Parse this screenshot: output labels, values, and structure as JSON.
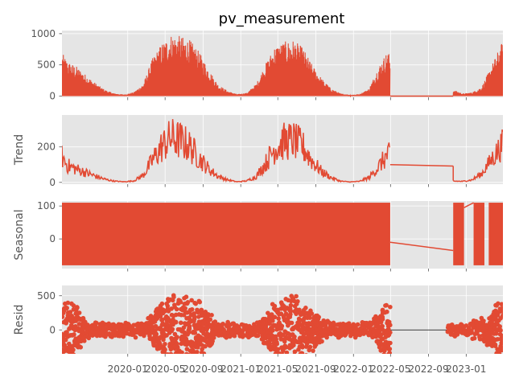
{
  "chart_data": {
    "type": "line",
    "title": "pv_measurement",
    "colors": {
      "series": "#E24A33",
      "panel_background": "#E5E5E5",
      "grid": "#FFFFFF",
      "tick_text": "#555555",
      "resid_baseline": "#000000"
    },
    "x_axis": {
      "ticks": [
        "2020-01",
        "2020-05",
        "2020-09",
        "2021-01",
        "2021-05",
        "2021-09",
        "2022-01",
        "2022-05",
        "2022-09",
        "2023-01"
      ],
      "range": [
        "2019-06-02",
        "2023-04-30"
      ],
      "shared": true
    },
    "x_events": {
      "winter_1": "2020-02-15",
      "summer_1_start": "2020-03-25",
      "summer_1_end": "2020-10-05",
      "winter_2": "2021-01-15",
      "summer_2_start": "2021-03-20",
      "summer_2_end": "2021-10-10",
      "burst_3_start": "2022-03-20",
      "data_gap_start": "2022-04-30",
      "data_gap_end": "2022-11-20",
      "seasonal_burst_a_end": "2022-12-25",
      "seasonal_burst_b": [
        "2023-01-25",
        "2023-03-01"
      ],
      "seasonal_burst_c_start": "2023-03-15"
    },
    "panels": [
      {
        "id": "observed",
        "ylabel": "",
        "ylim": [
          -20,
          1050
        ],
        "yticks": [
          0,
          500,
          1000
        ],
        "series_name": "pv_measurement",
        "envelope": [
          {
            "x": "2019-06-02",
            "y": 690
          },
          {
            "x": "2019-06-20",
            "y": 560
          },
          {
            "x": "2019-07-20",
            "y": 470
          },
          {
            "x": "2019-08-20",
            "y": 330
          },
          {
            "x": "2019-09-20",
            "y": 200
          },
          {
            "x": "2019-10-20",
            "y": 95
          },
          {
            "x": "2019-11-20",
            "y": 40
          },
          {
            "x": "2019-12-20",
            "y": 25
          },
          {
            "x": "2020-01-20",
            "y": 60
          },
          {
            "x": "2020-02-20",
            "y": 200
          },
          {
            "x": "2020-03-20",
            "y": 600
          },
          {
            "x": "2020-04-20",
            "y": 850
          },
          {
            "x": "2020-05-20",
            "y": 990
          },
          {
            "x": "2020-06-20",
            "y": 960
          },
          {
            "x": "2020-07-20",
            "y": 900
          },
          {
            "x": "2020-08-20",
            "y": 700
          },
          {
            "x": "2020-09-20",
            "y": 420
          },
          {
            "x": "2020-10-20",
            "y": 180
          },
          {
            "x": "2020-11-20",
            "y": 80
          },
          {
            "x": "2020-12-20",
            "y": 30
          },
          {
            "x": "2021-01-20",
            "y": 50
          },
          {
            "x": "2021-02-20",
            "y": 200
          },
          {
            "x": "2021-03-20",
            "y": 500
          },
          {
            "x": "2021-04-20",
            "y": 800
          },
          {
            "x": "2021-05-20",
            "y": 870
          },
          {
            "x": "2021-06-20",
            "y": 900
          },
          {
            "x": "2021-07-20",
            "y": 780
          },
          {
            "x": "2021-08-20",
            "y": 500
          },
          {
            "x": "2021-09-20",
            "y": 280
          },
          {
            "x": "2021-10-20",
            "y": 120
          },
          {
            "x": "2021-11-20",
            "y": 40
          },
          {
            "x": "2021-12-20",
            "y": 20
          },
          {
            "x": "2022-01-20",
            "y": 30
          },
          {
            "x": "2022-02-20",
            "y": 120
          },
          {
            "x": "2022-03-20",
            "y": 450
          },
          {
            "x": "2022-04-20",
            "y": 720
          },
          {
            "x": "2022-04-30",
            "y": 650
          },
          {
            "x": "2022-11-20",
            "y": 100
          },
          {
            "x": "2022-12-20",
            "y": 40
          },
          {
            "x": "2023-01-20",
            "y": 60
          },
          {
            "x": "2023-02-20",
            "y": 150
          },
          {
            "x": "2023-03-20",
            "y": 450
          },
          {
            "x": "2023-04-30",
            "y": 900
          }
        ],
        "flat_segments": [
          {
            "from": "2022-04-30",
            "to": "2022-11-20",
            "y": 0
          }
        ]
      },
      {
        "id": "trend",
        "ylabel": "Trend",
        "ylim": [
          -10,
          380
        ],
        "yticks": [
          0,
          200
        ],
        "envelope": [
          {
            "x": "2019-06-02",
            "y": 215
          },
          {
            "x": "2019-06-20",
            "y": 140
          },
          {
            "x": "2019-07-20",
            "y": 110
          },
          {
            "x": "2019-08-20",
            "y": 80
          },
          {
            "x": "2019-09-20",
            "y": 50
          },
          {
            "x": "2019-10-20",
            "y": 25
          },
          {
            "x": "2019-11-20",
            "y": 10
          },
          {
            "x": "2019-12-20",
            "y": 5
          },
          {
            "x": "2020-01-20",
            "y": 12
          },
          {
            "x": "2020-02-20",
            "y": 60
          },
          {
            "x": "2020-03-20",
            "y": 180
          },
          {
            "x": "2020-04-20",
            "y": 300
          },
          {
            "x": "2020-05-20",
            "y": 370
          },
          {
            "x": "2020-06-20",
            "y": 350
          },
          {
            "x": "2020-07-20",
            "y": 300
          },
          {
            "x": "2020-08-20",
            "y": 200
          },
          {
            "x": "2020-09-20",
            "y": 110
          },
          {
            "x": "2020-10-20",
            "y": 50
          },
          {
            "x": "2020-11-20",
            "y": 20
          },
          {
            "x": "2020-12-20",
            "y": 5
          },
          {
            "x": "2021-01-20",
            "y": 12
          },
          {
            "x": "2021-02-20",
            "y": 50
          },
          {
            "x": "2021-03-20",
            "y": 150
          },
          {
            "x": "2021-04-20",
            "y": 280
          },
          {
            "x": "2021-05-20",
            "y": 340
          },
          {
            "x": "2021-06-20",
            "y": 350
          },
          {
            "x": "2021-07-20",
            "y": 300
          },
          {
            "x": "2021-08-20",
            "y": 180
          },
          {
            "x": "2021-09-20",
            "y": 90
          },
          {
            "x": "2021-10-20",
            "y": 40
          },
          {
            "x": "2021-11-20",
            "y": 10
          },
          {
            "x": "2021-12-20",
            "y": 4
          },
          {
            "x": "2022-01-20",
            "y": 8
          },
          {
            "x": "2022-02-20",
            "y": 40
          },
          {
            "x": "2022-03-20",
            "y": 120
          },
          {
            "x": "2022-04-20",
            "y": 225
          },
          {
            "x": "2022-04-30",
            "y": 225
          }
        ],
        "tail_envelope": [
          {
            "x": "2022-11-20",
            "y": 10
          },
          {
            "x": "2022-12-20",
            "y": 8
          },
          {
            "x": "2023-01-20",
            "y": 20
          },
          {
            "x": "2023-02-20",
            "y": 70
          },
          {
            "x": "2023-03-20",
            "y": 170
          },
          {
            "x": "2023-04-30",
            "y": 310
          }
        ],
        "flat_segments": [
          {
            "from": "2022-04-30",
            "to": "2022-11-20",
            "y_start": 100,
            "y_end": 92
          },
          {
            "from": "2022-11-20",
            "to": "2022-11-20",
            "y_start": 92,
            "y_end": 10
          }
        ]
      },
      {
        "id": "seasonal",
        "ylabel": "Seasonal",
        "ylim": [
          -90,
          115
        ],
        "yticks": [
          0,
          100
        ],
        "band": {
          "min": -80,
          "max": 110
        },
        "connectors": [
          {
            "from": "2022-04-30",
            "to": "2022-11-20",
            "y_start": -10,
            "y_end": -35
          },
          {
            "from": "2022-12-25",
            "to": "2023-01-25",
            "y_start": 95,
            "y_end": 110
          }
        ]
      },
      {
        "id": "resid",
        "ylabel": "Resid",
        "ylim": [
          -350,
          650
        ],
        "yticks": [
          0,
          500
        ],
        "scatter_envelope": [
          {
            "x": "2019-06-02",
            "y": 520
          },
          {
            "x": "2019-07-20",
            "y": 380
          },
          {
            "x": "2019-08-20",
            "y": 150
          },
          {
            "x": "2019-09-20",
            "y": 120
          },
          {
            "x": "2019-12-20",
            "y": 110
          },
          {
            "x": "2020-02-20",
            "y": 120
          },
          {
            "x": "2020-03-20",
            "y": 250
          },
          {
            "x": "2020-04-20",
            "y": 500
          },
          {
            "x": "2020-05-20",
            "y": 620
          },
          {
            "x": "2020-07-20",
            "y": 560
          },
          {
            "x": "2020-09-20",
            "y": 300
          },
          {
            "x": "2020-10-20",
            "y": 120
          },
          {
            "x": "2021-02-20",
            "y": 120
          },
          {
            "x": "2021-03-20",
            "y": 250
          },
          {
            "x": "2021-04-20",
            "y": 450
          },
          {
            "x": "2021-05-20",
            "y": 630
          },
          {
            "x": "2021-07-20",
            "y": 500
          },
          {
            "x": "2021-09-20",
            "y": 200
          },
          {
            "x": "2021-10-20",
            "y": 120
          },
          {
            "x": "2022-02-20",
            "y": 120
          },
          {
            "x": "2022-03-20",
            "y": 250
          },
          {
            "x": "2022-04-20",
            "y": 500
          },
          {
            "x": "2022-04-30",
            "y": 550
          }
        ],
        "tail_envelope": [
          {
            "x": "2022-11-20",
            "y": 100
          },
          {
            "x": "2022-12-20",
            "y": 90
          },
          {
            "x": "2023-01-20",
            "y": 150
          },
          {
            "x": "2023-02-20",
            "y": 200
          },
          {
            "x": "2023-03-20",
            "y": 300
          },
          {
            "x": "2023-04-30",
            "y": 560
          }
        ],
        "baseline": {
          "from": "2022-04-30",
          "to": "2022-11-20",
          "y": 0
        }
      }
    ],
    "grid": true,
    "style": "ggplot"
  }
}
